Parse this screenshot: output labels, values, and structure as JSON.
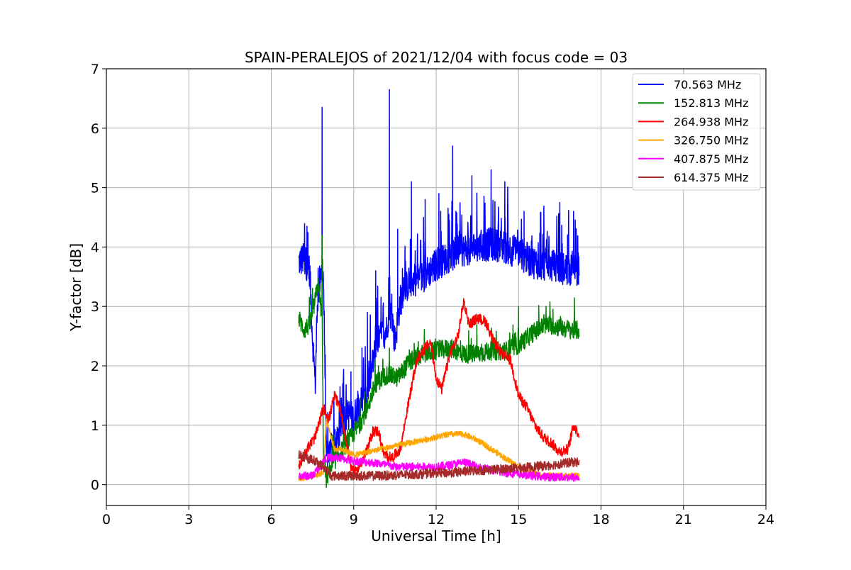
{
  "chart_data": {
    "type": "line",
    "title": "SPAIN-PERALEJOS of 2021/12/04 with focus code = 03",
    "xlabel": "Universal Time [h]",
    "ylabel": "Y-factor [dB]",
    "xlim": [
      0,
      24
    ],
    "ylim": [
      -0.35,
      7
    ],
    "xticks": [
      0,
      3,
      6,
      9,
      12,
      15,
      18,
      21,
      24
    ],
    "yticks": [
      0,
      1,
      2,
      3,
      4,
      5,
      6,
      7
    ],
    "grid": true,
    "legend_position": "top-right",
    "series": [
      {
        "name": " 70.563 MHz",
        "color": "#0000ff",
        "x": [
          7.0,
          7.2,
          7.4,
          7.5,
          7.6,
          7.7,
          7.8,
          7.9,
          8.0,
          8.2,
          8.4,
          8.6,
          8.8,
          9.0,
          9.2,
          9.4,
          9.6,
          9.8,
          10.0,
          10.2,
          10.3,
          10.5,
          10.7,
          11.0,
          11.5,
          12.0,
          12.5,
          13.0,
          13.5,
          14.0,
          14.5,
          15.0,
          15.5,
          16.0,
          16.5,
          17.0,
          17.2
        ],
        "y": [
          3.75,
          3.8,
          3.6,
          2.5,
          1.7,
          3.2,
          3.6,
          3.5,
          0.5,
          0.6,
          0.7,
          1.1,
          1.2,
          1.1,
          1.4,
          1.4,
          1.8,
          2.3,
          2.5,
          2.6,
          3.0,
          2.4,
          3.1,
          3.4,
          3.5,
          3.7,
          3.85,
          3.95,
          4.0,
          4.05,
          4.0,
          3.9,
          3.75,
          3.7,
          3.65,
          3.6,
          3.65
        ],
        "spikes": [
          [
            7.15,
            4.0
          ],
          [
            7.3,
            4.35
          ],
          [
            7.85,
            6.35
          ],
          [
            8.6,
            1.7
          ],
          [
            8.9,
            1.9
          ],
          [
            9.3,
            2.3
          ],
          [
            9.5,
            2.9
          ],
          [
            9.8,
            3.6
          ],
          [
            10.3,
            6.65
          ],
          [
            10.6,
            4.3
          ],
          [
            11.1,
            5.1
          ],
          [
            11.6,
            4.8
          ],
          [
            12.1,
            4.9
          ],
          [
            12.6,
            5.7
          ],
          [
            13.3,
            5.2
          ],
          [
            14.0,
            5.3
          ],
          [
            14.5,
            5.1
          ],
          [
            15.2,
            4.6
          ],
          [
            15.8,
            4.5
          ],
          [
            16.5,
            4.75
          ],
          [
            17.0,
            4.6
          ]
        ]
      },
      {
        "name": "152.813 MHz",
        "color": "#008000",
        "x": [
          7.0,
          7.2,
          7.4,
          7.6,
          7.7,
          7.8,
          7.85,
          7.9,
          8.0,
          8.3,
          8.6,
          8.9,
          9.2,
          9.5,
          9.8,
          10.2,
          10.6,
          11.0,
          11.5,
          12.0,
          12.5,
          13.0,
          13.5,
          14.0,
          14.5,
          15.0,
          15.5,
          16.0,
          16.5,
          17.0,
          17.2
        ],
        "y": [
          2.8,
          2.6,
          2.7,
          3.1,
          3.4,
          3.0,
          2.9,
          0.5,
          0.1,
          0.4,
          0.6,
          0.8,
          1.0,
          1.3,
          1.7,
          1.85,
          1.8,
          2.05,
          2.2,
          2.25,
          2.3,
          2.2,
          2.2,
          2.25,
          2.25,
          2.35,
          2.55,
          2.7,
          2.65,
          2.6,
          2.6
        ],
        "spikes": [
          [
            7.85,
            4.2
          ],
          [
            9.9,
            2.0
          ],
          [
            10.3,
            2.3
          ],
          [
            15.0,
            3.0
          ],
          [
            16.0,
            3.0
          ]
        ]
      },
      {
        "name": "264.938 MHz",
        "color": "#ff0000",
        "x": [
          7.0,
          7.3,
          7.6,
          7.9,
          8.1,
          8.3,
          8.5,
          8.7,
          8.9,
          9.1,
          9.3,
          9.5,
          9.7,
          9.9,
          10.1,
          10.4,
          10.7,
          11.0,
          11.3,
          11.6,
          11.8,
          12.0,
          12.2,
          12.5,
          12.8,
          13.0,
          13.2,
          13.5,
          13.8,
          14.1,
          14.4,
          14.7,
          15.0,
          15.3,
          15.6,
          15.9,
          16.2,
          16.5,
          16.8,
          17.0,
          17.2
        ],
        "y": [
          0.3,
          0.6,
          0.8,
          1.3,
          1.1,
          1.5,
          1.3,
          0.8,
          0.3,
          0.2,
          0.4,
          0.6,
          0.9,
          0.9,
          0.5,
          0.45,
          0.6,
          1.4,
          2.1,
          2.3,
          2.4,
          1.8,
          1.6,
          2.2,
          2.5,
          3.1,
          2.7,
          2.8,
          2.75,
          2.4,
          2.2,
          2.1,
          1.5,
          1.3,
          1.0,
          0.8,
          0.7,
          0.55,
          0.6,
          1.0,
          0.85
        ]
      },
      {
        "name": "326.750 MHz",
        "color": "#ffa500",
        "x": [
          7.0,
          7.5,
          7.9,
          8.0,
          8.3,
          8.6,
          9.0,
          9.5,
          10.0,
          10.5,
          11.0,
          11.5,
          12.0,
          12.5,
          13.0,
          13.5,
          14.0,
          14.5,
          15.0,
          15.5,
          16.0,
          16.5,
          17.0,
          17.2
        ],
        "y": [
          0.1,
          0.15,
          0.2,
          1.1,
          0.6,
          0.6,
          0.5,
          0.55,
          0.6,
          0.65,
          0.7,
          0.75,
          0.8,
          0.85,
          0.85,
          0.75,
          0.6,
          0.45,
          0.3,
          0.2,
          0.15,
          0.15,
          0.15,
          0.15
        ]
      },
      {
        "name": "407.875 MHz",
        "color": "#ff00ff",
        "x": [
          7.0,
          7.5,
          8.0,
          8.5,
          9.0,
          9.5,
          10.0,
          10.5,
          11.0,
          11.5,
          12.0,
          12.5,
          13.0,
          13.5,
          14.0,
          14.5,
          15.0,
          15.5,
          16.0,
          16.5,
          17.0,
          17.2
        ],
        "y": [
          0.15,
          0.15,
          0.45,
          0.45,
          0.4,
          0.38,
          0.35,
          0.3,
          0.3,
          0.3,
          0.3,
          0.33,
          0.38,
          0.3,
          0.25,
          0.2,
          0.18,
          0.15,
          0.13,
          0.13,
          0.12,
          0.12
        ]
      },
      {
        "name": "614.375 MHz",
        "color": "#a52a2a",
        "x": [
          7.0,
          7.3,
          7.6,
          7.9,
          8.2,
          8.5,
          9.0,
          9.5,
          10.0,
          10.5,
          11.0,
          11.5,
          12.0,
          12.5,
          13.0,
          13.5,
          14.0,
          14.5,
          15.0,
          15.5,
          16.0,
          16.5,
          17.0,
          17.2
        ],
        "y": [
          0.5,
          0.45,
          0.4,
          0.3,
          0.15,
          0.15,
          0.15,
          0.15,
          0.15,
          0.16,
          0.17,
          0.18,
          0.2,
          0.2,
          0.22,
          0.24,
          0.25,
          0.27,
          0.28,
          0.3,
          0.32,
          0.35,
          0.38,
          0.38
        ]
      }
    ]
  }
}
